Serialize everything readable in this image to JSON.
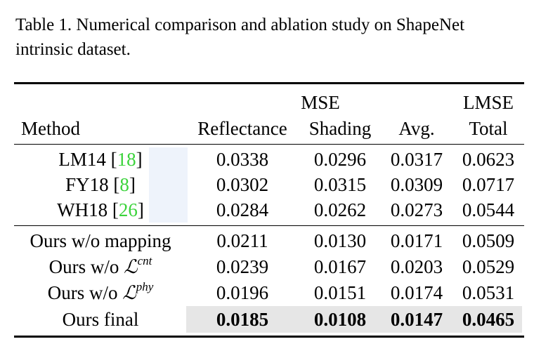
{
  "caption": "Table 1. Numerical comparison and ablation study on ShapeNet intrinsic dataset.",
  "header": {
    "group_mse": "MSE",
    "group_lmse": "LMSE",
    "method": "Method",
    "reflectance": "Reflectance",
    "shading": "Shading",
    "avg": "Avg.",
    "total": "Total"
  },
  "rows": [
    {
      "method": "LM14 [",
      "cite": "18",
      "close": "]",
      "reflectance": "0.0338",
      "shading": "0.0296",
      "avg": "0.0317",
      "total": "0.0623"
    },
    {
      "method": "FY18 [",
      "cite": "8",
      "close": "]",
      "reflectance": "0.0302",
      "shading": "0.0315",
      "avg": "0.0309",
      "total": "0.0717"
    },
    {
      "method": "WH18 [",
      "cite": "26",
      "close": "]",
      "reflectance": "0.0284",
      "shading": "0.0262",
      "avg": "0.0273",
      "total": "0.0544"
    },
    {
      "method": "Ours w/o mapping",
      "reflectance": "0.0211",
      "shading": "0.0130",
      "avg": "0.0171",
      "total": "0.0509"
    },
    {
      "method": "Ours w/o ",
      "sym": "ℒ",
      "sup": "cnt",
      "reflectance": "0.0239",
      "shading": "0.0167",
      "avg": "0.0203",
      "total": "0.0529"
    },
    {
      "method": "Ours w/o ",
      "sym": "ℒ",
      "sup": "phy",
      "reflectance": "0.0196",
      "shading": "0.0151",
      "avg": "0.0174",
      "total": "0.0531"
    },
    {
      "method": "Ours final",
      "reflectance": "0.0185",
      "shading": "0.0108",
      "avg": "0.0147",
      "total": "0.0465"
    }
  ]
}
